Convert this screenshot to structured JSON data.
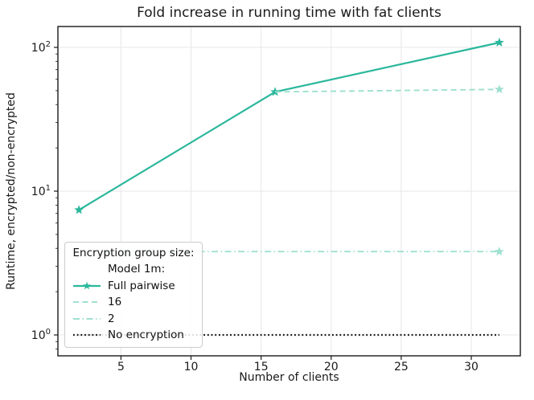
{
  "colors": {
    "series_teal": "#2bb79c",
    "series_light_teal": "#9fe0d0",
    "series_black": "#161616",
    "grid": "#e7e7e7",
    "spine": "#1a1a1a"
  },
  "legend": {
    "title": "Encryption group size:",
    "entries": [
      {
        "label": "Model 1m:",
        "key": "none"
      },
      {
        "label": "Full pairwise",
        "key": "solid-star"
      },
      {
        "label": "16",
        "key": "dashed"
      },
      {
        "label": "2",
        "key": "dashdot"
      },
      {
        "label": "No encryption",
        "key": "dotted"
      }
    ]
  },
  "chart_data": {
    "type": "line",
    "title": "Fold increase in running time with fat clients",
    "xlabel": "Number of clients",
    "ylabel": "Runtime, encrypted/non-encrypted",
    "x_scale": "linear",
    "y_scale": "log",
    "xlim": [
      0.5,
      33.5
    ],
    "ylim_log10": [
      -0.145,
      2.145
    ],
    "x_ticks": [
      5,
      10,
      15,
      20,
      25,
      30
    ],
    "y_ticks": [
      {
        "value": 1,
        "exponent": "0"
      },
      {
        "value": 10,
        "exponent": "1"
      },
      {
        "value": 100,
        "exponent": "2"
      }
    ],
    "grid": true,
    "legend_position": "lower left",
    "series": [
      {
        "name": "Full pairwise",
        "x": [
          2,
          16,
          32
        ],
        "y": [
          7.4,
          49,
          108
        ],
        "color": "#2bb79c",
        "dash": "solid",
        "width": 2.2,
        "marker": "all"
      },
      {
        "name": "16",
        "x": [
          16,
          32
        ],
        "y": [
          49,
          51
        ],
        "color": "#9fe0d0",
        "dash": "dashed",
        "width": 1.9,
        "marker": "last"
      },
      {
        "name": "2",
        "x": [
          2,
          16,
          32
        ],
        "y": [
          3.8,
          3.8,
          3.8
        ],
        "color": "#9fe0d0",
        "dash": "dashdot",
        "width": 1.9,
        "marker": "last"
      },
      {
        "name": "No encryption",
        "x": [
          2,
          32
        ],
        "y": [
          1.0,
          1.0
        ],
        "color": "#161616",
        "dash": "dotted",
        "width": 2.2,
        "marker": "none"
      }
    ]
  }
}
